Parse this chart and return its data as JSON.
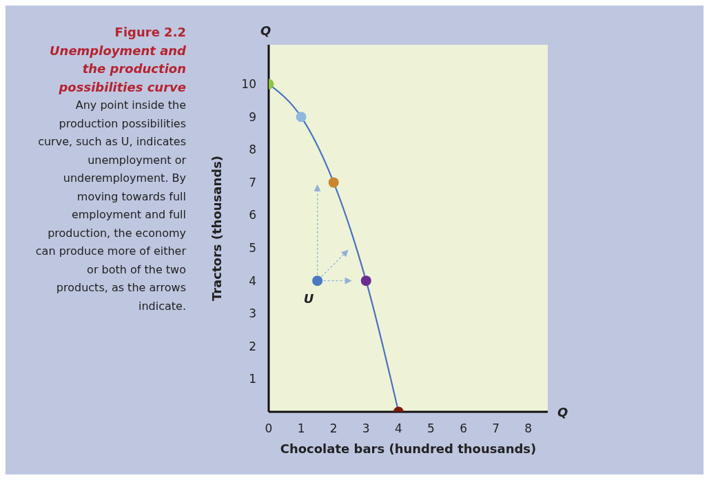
{
  "chart_data": {
    "type": "line",
    "title": "Figure 2.2",
    "subtitle": "Unemployment and the production possibilities curve",
    "annotations": [
      "Any point inside the production possibilities curve, such as U, indicates unemployment or underemployment. By moving towards full employment and full production, the economy can produce more of either or both of the two products, as the arrows indicate.",
      "Q",
      "Q"
    ],
    "xlabel": "Chocolate bars (hundred thousands)",
    "ylabel": "Tractors (thousands)",
    "xlim": [
      0,
      8.6
    ],
    "ylim": [
      0,
      11.2
    ],
    "xticks": [
      0,
      1,
      2,
      3,
      4,
      5,
      6,
      7,
      8
    ],
    "yticks": [
      1,
      2,
      3,
      4,
      5,
      6,
      7,
      8,
      9,
      10
    ],
    "grid": false,
    "legend": false,
    "series": [
      {
        "type": "line",
        "x": [
          0,
          1,
          2,
          3,
          4
        ],
        "values": [
          10,
          9,
          7,
          4,
          0
        ],
        "color": "#4a72c0"
      },
      {
        "type": "scatter",
        "x": [
          0,
          1,
          2,
          3,
          4
        ],
        "values": [
          10,
          9,
          7,
          4,
          0
        ],
        "colors": [
          "#8cc63f",
          "#8fb8de",
          "#c8872e",
          "#6b2c91",
          "#7a1a0a"
        ]
      },
      {
        "type": "scatter",
        "name": "U",
        "x": [
          1.5
        ],
        "values": [
          4
        ],
        "color": "#4a78c2"
      }
    ]
  }
}
